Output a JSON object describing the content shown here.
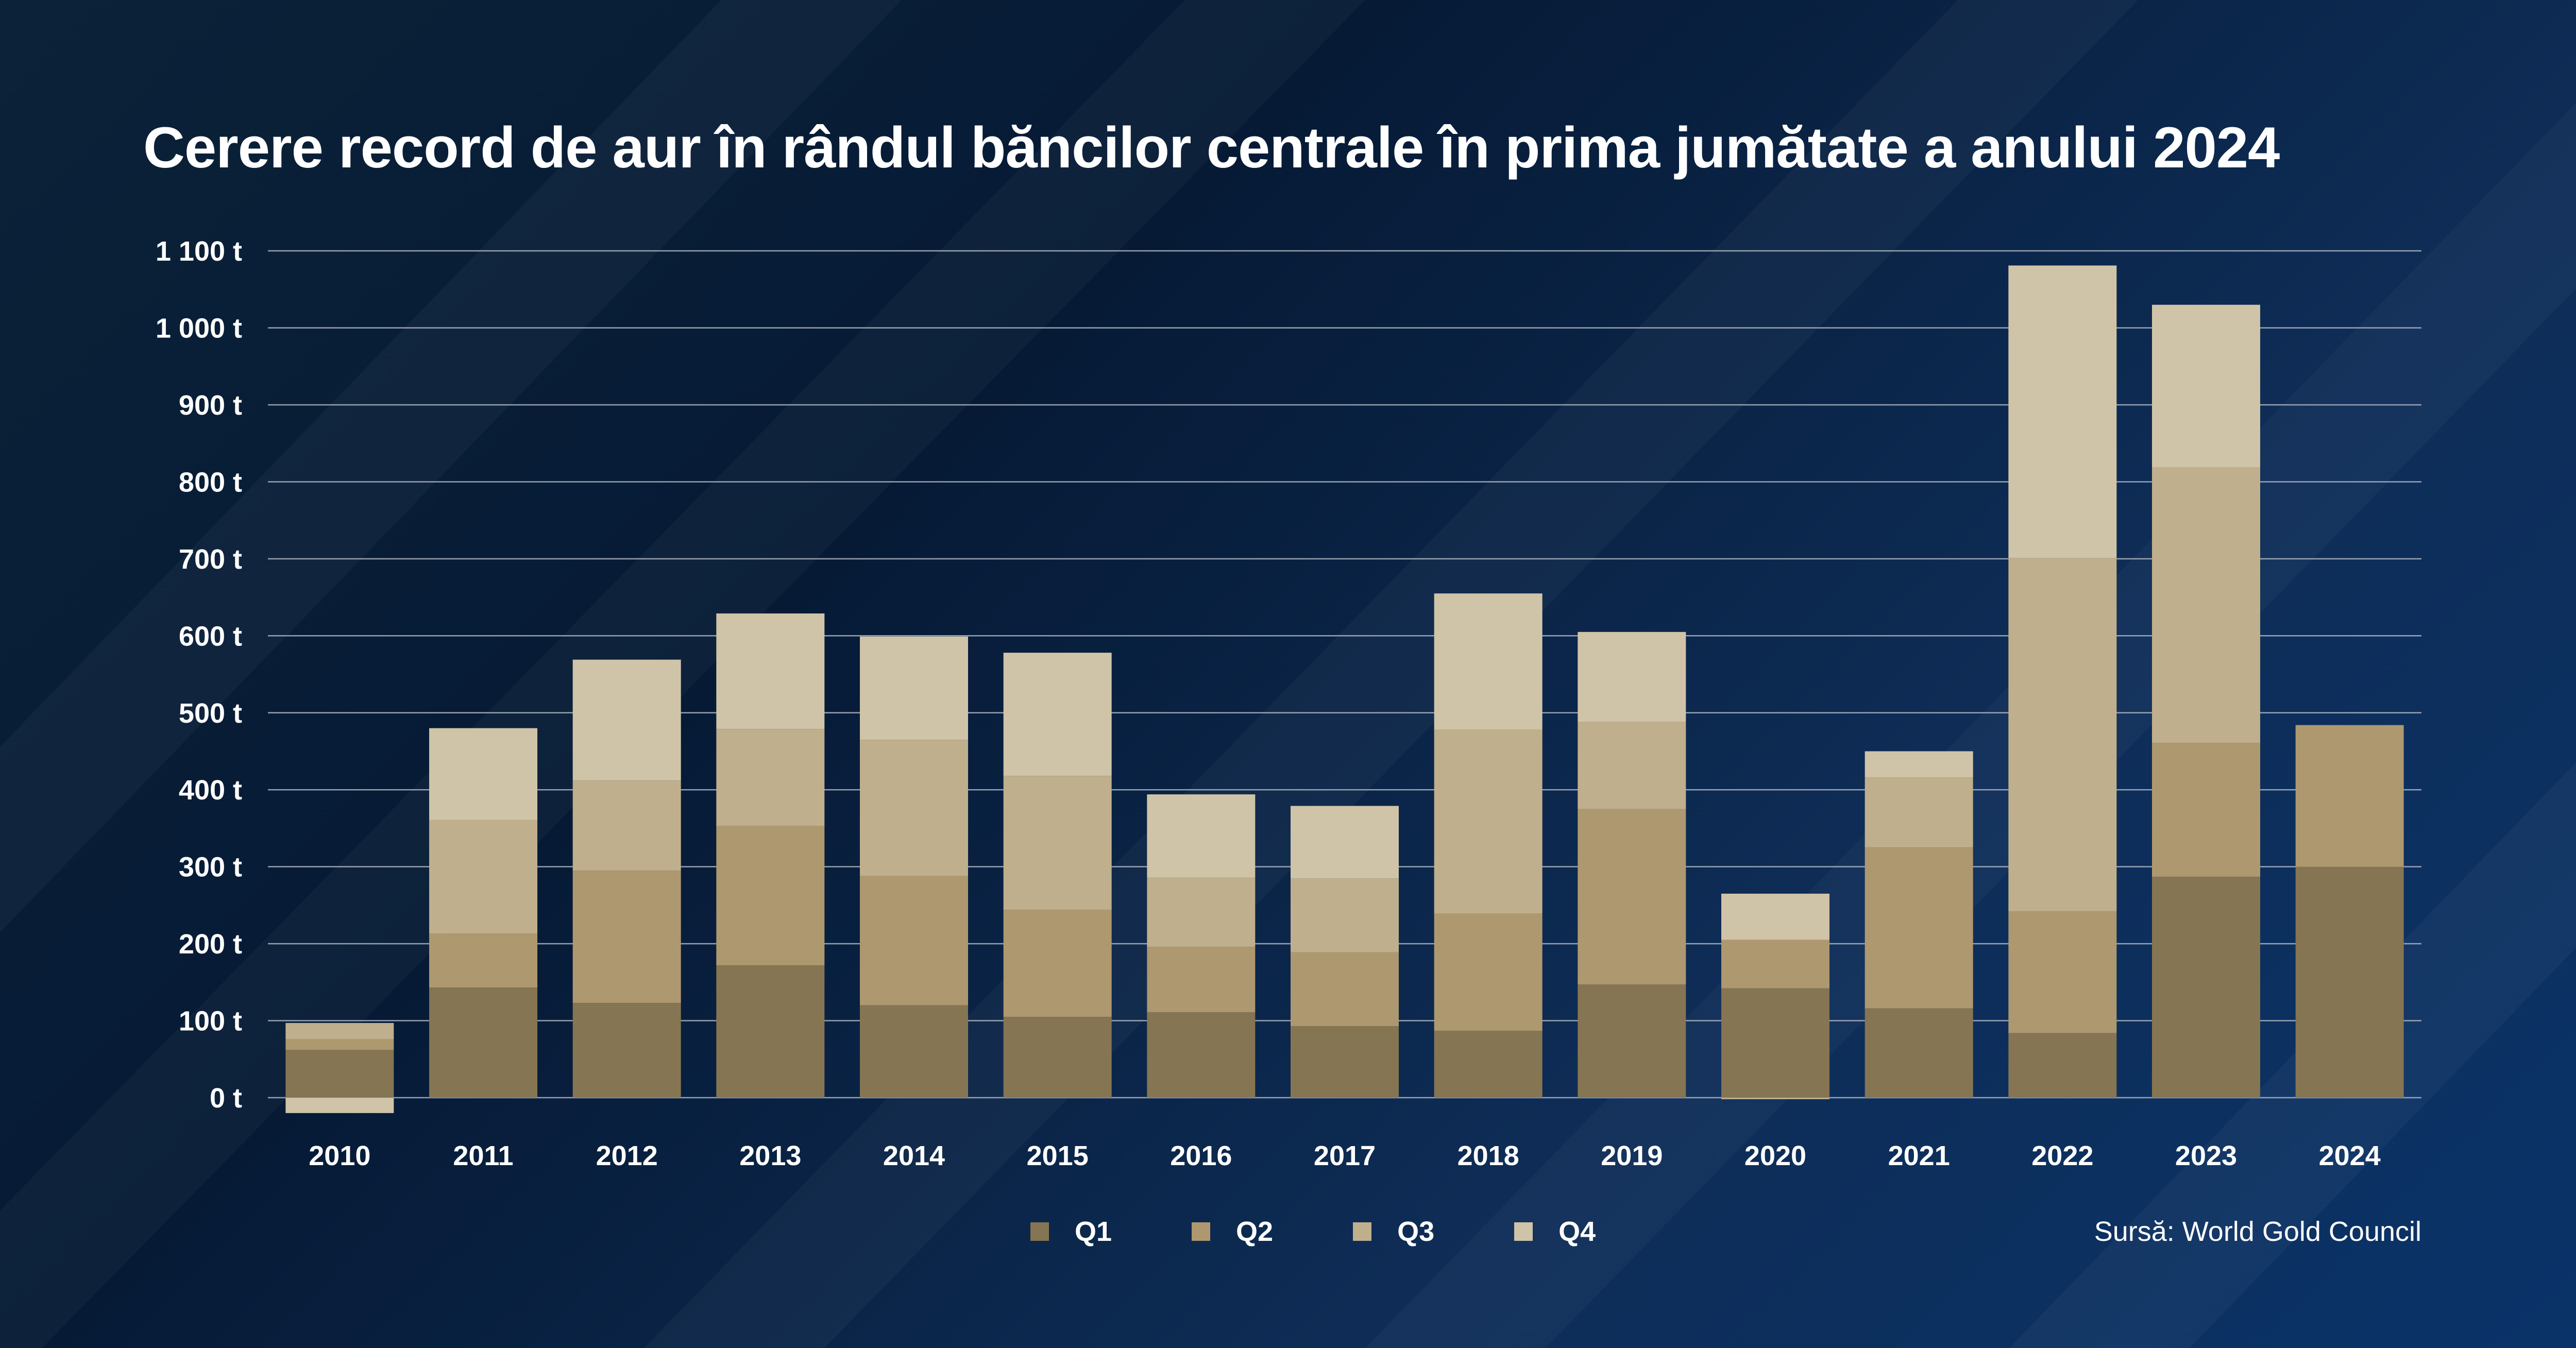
{
  "title": "Cerere record de aur în rândul băncilor centrale în prima jumătate a anului 2024",
  "source": "Sursă: World Gold Council",
  "colors": {
    "Q1": "#857553",
    "Q2": "#ae986f",
    "Q3": "#bfaf8d",
    "Q4": "#cfc4a8",
    "grid": "#aeb6c2",
    "text": "#ffffff"
  },
  "chart_data": {
    "type": "bar",
    "stacked": true,
    "title": "Cerere record de aur în rândul băncilor centrale în prima jumătate a anului 2024",
    "xlabel": "",
    "ylabel": "",
    "ylim": [
      -20,
      1100
    ],
    "y_ticks": [
      0,
      100,
      200,
      300,
      400,
      500,
      600,
      700,
      800,
      900,
      1000,
      1100
    ],
    "y_tick_labels": [
      "0 t",
      "100 t",
      "200 t",
      "300 t",
      "400 t",
      "500 t",
      "600 t",
      "700 t",
      "800 t",
      "900 t",
      "1 000 t",
      "1 100 t"
    ],
    "grid": true,
    "legend_position": "bottom",
    "categories": [
      "2010",
      "2011",
      "2012",
      "2013",
      "2014",
      "2015",
      "2016",
      "2017",
      "2018",
      "2019",
      "2020",
      "2021",
      "2022",
      "2023",
      "2024"
    ],
    "series": [
      {
        "name": "Q1",
        "values": [
          62,
          143,
          123,
          172,
          120,
          105,
          111,
          93,
          87,
          147,
          142,
          116,
          84,
          287,
          300
        ]
      },
      {
        "name": "Q2",
        "values": [
          14,
          70,
          172,
          181,
          168,
          139,
          85,
          96,
          152,
          228,
          63,
          209,
          158,
          174,
          184
        ]
      },
      {
        "name": "Q3",
        "values": [
          21,
          148,
          117,
          126,
          177,
          174,
          90,
          96,
          239,
          113,
          -2,
          91,
          459,
          358,
          0
        ]
      },
      {
        "name": "Q4",
        "values": [
          -20,
          119,
          157,
          150,
          134,
          160,
          108,
          94,
          177,
          117,
          60,
          34,
          380,
          211,
          0
        ]
      }
    ]
  }
}
